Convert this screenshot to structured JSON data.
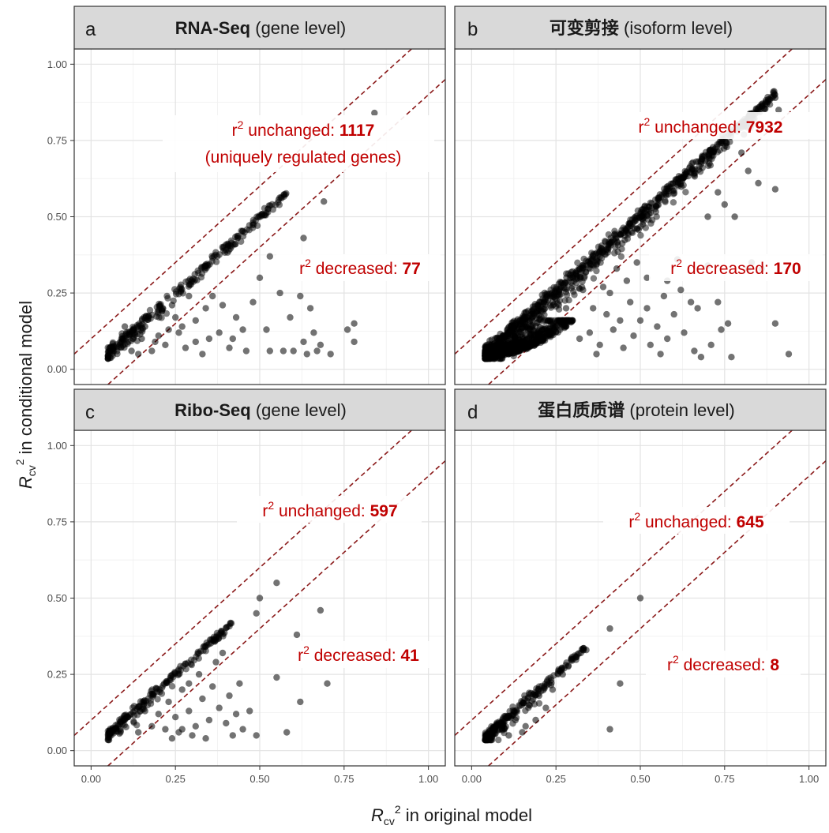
{
  "chart_data": {
    "type": "scatter",
    "xlabel": {
      "main": "R",
      "sub": "cv",
      "sup": "2",
      "rest": " in original model"
    },
    "ylabel": {
      "main": "R",
      "sub": "cv",
      "sup": "2",
      "rest": " in conditional model"
    },
    "xlim": [
      0,
      1
    ],
    "ylim": [
      0,
      1
    ],
    "x_ticks": [
      "0.00",
      "0.25",
      "0.50",
      "0.75",
      "1.00"
    ],
    "y_ticks": [
      "0.00",
      "0.25",
      "0.50",
      "0.75",
      "1.00"
    ],
    "grid": true,
    "reference_lines": {
      "offsets": [
        0.1,
        -0.1
      ],
      "style": "dashed",
      "color": "#8b1a1a"
    },
    "point_color": "#000000",
    "annotation_color": "#c00000",
    "panels": [
      {
        "letter": "a",
        "strip": {
          "bold": "RNA-Seq",
          "rest": " (gene level)"
        },
        "ann_unchanged": {
          "prefix": "r",
          "sup": "2",
          "label": " unchanged: ",
          "count": "1117"
        },
        "ann_unchanged_extra": "(uniquely regulated genes)",
        "ann_decreased": {
          "prefix": "r",
          "sup": "2",
          "label": " decreased: ",
          "count": "77"
        },
        "diag": {
          "from": 0.05,
          "to": 0.58,
          "jitter": 0.02,
          "count": 260
        },
        "outliers": [
          [
            0.84,
            0.84
          ],
          [
            0.69,
            0.55
          ],
          [
            0.63,
            0.43
          ],
          [
            0.62,
            0.24
          ],
          [
            0.56,
            0.25
          ],
          [
            0.53,
            0.37
          ],
          [
            0.5,
            0.3
          ],
          [
            0.48,
            0.22
          ],
          [
            0.45,
            0.13
          ],
          [
            0.42,
            0.1
          ],
          [
            0.41,
            0.07
          ],
          [
            0.39,
            0.21
          ],
          [
            0.36,
            0.24
          ],
          [
            0.35,
            0.1
          ],
          [
            0.33,
            0.05
          ],
          [
            0.31,
            0.16
          ],
          [
            0.29,
            0.24
          ],
          [
            0.28,
            0.07
          ],
          [
            0.26,
            0.12
          ],
          [
            0.24,
            0.21
          ],
          [
            0.22,
            0.08
          ],
          [
            0.2,
            0.11
          ],
          [
            0.18,
            0.06
          ],
          [
            0.16,
            0.14
          ],
          [
            0.14,
            0.05
          ],
          [
            0.53,
            0.06
          ],
          [
            0.57,
            0.06
          ],
          [
            0.6,
            0.06
          ],
          [
            0.63,
            0.09
          ],
          [
            0.64,
            0.05
          ],
          [
            0.65,
            0.2
          ],
          [
            0.66,
            0.12
          ],
          [
            0.67,
            0.06
          ],
          [
            0.68,
            0.08
          ],
          [
            0.71,
            0.05
          ],
          [
            0.76,
            0.13
          ],
          [
            0.78,
            0.15
          ],
          [
            0.78,
            0.09
          ],
          [
            0.59,
            0.17
          ],
          [
            0.52,
            0.13
          ],
          [
            0.46,
            0.06
          ],
          [
            0.43,
            0.17
          ],
          [
            0.38,
            0.12
          ],
          [
            0.34,
            0.2
          ],
          [
            0.31,
            0.09
          ],
          [
            0.27,
            0.14
          ],
          [
            0.25,
            0.17
          ],
          [
            0.23,
            0.13
          ],
          [
            0.21,
            0.19
          ],
          [
            0.19,
            0.09
          ],
          [
            0.17,
            0.17
          ],
          [
            0.15,
            0.1
          ],
          [
            0.13,
            0.12
          ],
          [
            0.12,
            0.06
          ],
          [
            0.11,
            0.09
          ],
          [
            0.1,
            0.14
          ]
        ]
      },
      {
        "letter": "b",
        "strip": {
          "bold": "可变剪接",
          "rest": " (isoform level)"
        },
        "ann_unchanged": {
          "prefix": "r",
          "sup": "2",
          "label": " unchanged: ",
          "count": "7932"
        },
        "ann_decreased": {
          "prefix": "r",
          "sup": "2",
          "label": " decreased: ",
          "count": "170"
        },
        "diag": {
          "from": 0.04,
          "to": 0.9,
          "jitter": 0.035,
          "count": 900
        },
        "blob": {
          "x": [
            0.04,
            0.3
          ],
          "y": [
            0.04,
            0.16
          ],
          "count": 700
        },
        "outliers": [
          [
            0.87,
            0.87
          ],
          [
            0.9,
            0.89
          ],
          [
            0.91,
            0.85
          ],
          [
            0.9,
            0.59
          ],
          [
            0.85,
            0.61
          ],
          [
            0.82,
            0.65
          ],
          [
            0.8,
            0.71
          ],
          [
            0.78,
            0.5
          ],
          [
            0.75,
            0.54
          ],
          [
            0.73,
            0.58
          ],
          [
            0.7,
            0.5
          ],
          [
            0.67,
            0.2
          ],
          [
            0.65,
            0.22
          ],
          [
            0.63,
            0.12
          ],
          [
            0.6,
            0.18
          ],
          [
            0.58,
            0.1
          ],
          [
            0.55,
            0.14
          ],
          [
            0.53,
            0.08
          ],
          [
            0.5,
            0.16
          ],
          [
            0.48,
            0.11
          ],
          [
            0.45,
            0.07
          ],
          [
            0.42,
            0.13
          ],
          [
            0.4,
            0.18
          ],
          [
            0.38,
            0.08
          ],
          [
            0.35,
            0.12
          ],
          [
            0.52,
            0.3
          ],
          [
            0.49,
            0.35
          ],
          [
            0.46,
            0.29
          ],
          [
            0.43,
            0.33
          ],
          [
            0.41,
            0.25
          ],
          [
            0.83,
            0.35
          ],
          [
            0.82,
            0.33
          ],
          [
            0.86,
            0.33
          ],
          [
            0.9,
            0.15
          ],
          [
            0.94,
            0.05
          ],
          [
            0.77,
            0.04
          ],
          [
            0.74,
            0.13
          ],
          [
            0.71,
            0.08
          ],
          [
            0.68,
            0.04
          ],
          [
            0.62,
            0.26
          ],
          [
            0.57,
            0.24
          ],
          [
            0.52,
            0.2
          ],
          [
            0.47,
            0.22
          ],
          [
            0.44,
            0.16
          ],
          [
            0.39,
            0.27
          ],
          [
            0.36,
            0.2
          ],
          [
            0.33,
            0.26
          ],
          [
            0.3,
            0.31
          ],
          [
            0.28,
            0.2
          ],
          [
            0.26,
            0.26
          ],
          [
            0.24,
            0.22
          ],
          [
            0.32,
            0.1
          ],
          [
            0.37,
            0.05
          ],
          [
            0.56,
            0.05
          ],
          [
            0.66,
            0.06
          ],
          [
            0.73,
            0.22
          ],
          [
            0.7,
            0.34
          ],
          [
            0.76,
            0.15
          ],
          [
            0.58,
            0.29
          ],
          [
            0.61,
            0.36
          ]
        ]
      },
      {
        "letter": "c",
        "strip": {
          "bold": "Ribo-Seq",
          "rest": " (gene level)"
        },
        "ann_unchanged": {
          "prefix": "r",
          "sup": "2",
          "label": " unchanged: ",
          "count": "597"
        },
        "ann_decreased": {
          "prefix": "r",
          "sup": "2",
          "label": " decreased: ",
          "count": "41"
        },
        "diag": {
          "from": 0.05,
          "to": 0.42,
          "jitter": 0.02,
          "count": 200
        },
        "outliers": [
          [
            0.55,
            0.55
          ],
          [
            0.5,
            0.5
          ],
          [
            0.49,
            0.45
          ],
          [
            0.68,
            0.46
          ],
          [
            0.61,
            0.38
          ],
          [
            0.55,
            0.24
          ],
          [
            0.62,
            0.16
          ],
          [
            0.7,
            0.22
          ],
          [
            0.58,
            0.06
          ],
          [
            0.49,
            0.05
          ],
          [
            0.45,
            0.07
          ],
          [
            0.43,
            0.12
          ],
          [
            0.4,
            0.09
          ],
          [
            0.38,
            0.14
          ],
          [
            0.36,
            0.21
          ],
          [
            0.35,
            0.1
          ],
          [
            0.33,
            0.17
          ],
          [
            0.31,
            0.08
          ],
          [
            0.29,
            0.13
          ],
          [
            0.27,
            0.07
          ],
          [
            0.25,
            0.11
          ],
          [
            0.23,
            0.16
          ],
          [
            0.22,
            0.07
          ],
          [
            0.2,
            0.12
          ],
          [
            0.18,
            0.08
          ],
          [
            0.16,
            0.13
          ],
          [
            0.14,
            0.06
          ],
          [
            0.32,
            0.25
          ],
          [
            0.29,
            0.22
          ],
          [
            0.27,
            0.2
          ],
          [
            0.41,
            0.18
          ],
          [
            0.44,
            0.22
          ],
          [
            0.47,
            0.13
          ],
          [
            0.39,
            0.32
          ],
          [
            0.37,
            0.29
          ],
          [
            0.42,
            0.05
          ],
          [
            0.34,
            0.04
          ],
          [
            0.3,
            0.05
          ],
          [
            0.26,
            0.06
          ],
          [
            0.24,
            0.04
          ]
        ]
      },
      {
        "letter": "d",
        "strip": {
          "bold": "蛋白质质谱",
          "rest": " (protein level)"
        },
        "ann_unchanged": {
          "prefix": "r",
          "sup": "2",
          "label": " unchanged: ",
          "count": "645"
        },
        "ann_decreased": {
          "prefix": "r",
          "sup": "2",
          "label": " decreased: ",
          "count": "8"
        },
        "diag": {
          "from": 0.04,
          "to": 0.34,
          "jitter": 0.02,
          "count": 220
        },
        "outliers": [
          [
            0.5,
            0.5
          ],
          [
            0.41,
            0.4
          ],
          [
            0.44,
            0.22
          ],
          [
            0.41,
            0.07
          ],
          [
            0.34,
            0.33
          ],
          [
            0.33,
            0.33
          ],
          [
            0.27,
            0.25
          ],
          [
            0.24,
            0.2
          ],
          [
            0.2,
            0.18
          ],
          [
            0.17,
            0.15
          ],
          [
            0.15,
            0.06
          ],
          [
            0.13,
            0.1
          ],
          [
            0.11,
            0.05
          ],
          [
            0.22,
            0.14
          ],
          [
            0.19,
            0.1
          ],
          [
            0.16,
            0.08
          ]
        ]
      }
    ]
  }
}
